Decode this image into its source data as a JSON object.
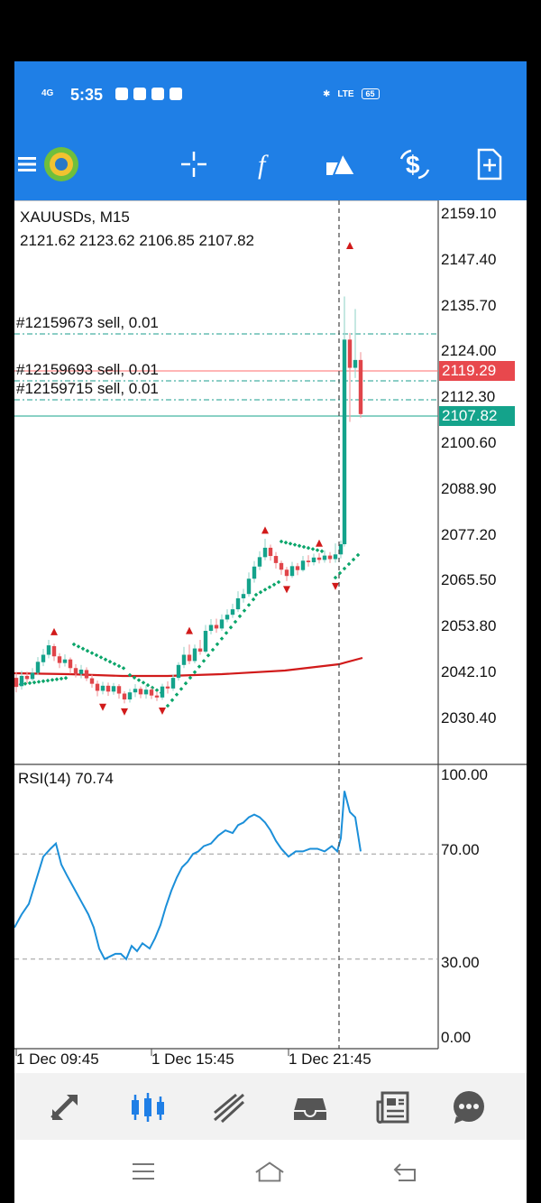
{
  "status_bar": {
    "network": "4G",
    "time": "5:35",
    "battery": "65",
    "volte": "LTE"
  },
  "toolbar": {
    "menu_icon": "menu-icon",
    "logo_icon": "metatrader-logo",
    "buttons": [
      "crosshair-icon",
      "function-icon",
      "objects-icon",
      "trade-dollar-icon",
      "new-order-icon"
    ]
  },
  "chart": {
    "symbol": "XAUUSDs, M15",
    "ohlc": "2121.62 2123.62 2106.85 2107.82",
    "orders": [
      "#12159673 sell, 0.01",
      "#12159693 sell, 0.01",
      "#12159715 sell, 0.01"
    ],
    "price_labels": [
      "2159.10",
      "2147.40",
      "2135.70",
      "2124.00",
      "2112.30",
      "2100.60",
      "2088.90",
      "2077.20",
      "2065.50",
      "2053.80",
      "2042.10",
      "2030.40"
    ],
    "ask_price": "2119.29",
    "bid_price": "2107.82",
    "colors": {
      "bull": "#14a38b",
      "bear": "#e0454a",
      "ma": "#d11a1a",
      "sar": "#0aa56a",
      "order_line": "#1a9c8c",
      "ask_line": "#ff6b6b",
      "rsi": "#1b8fd9"
    }
  },
  "rsi": {
    "label": "RSI(14) 70.74",
    "levels": [
      "100.00",
      "70.00",
      "30.00",
      "0.00"
    ]
  },
  "time_axis": [
    "1 Dec 09:45",
    "1 Dec 15:45",
    "1 Dec 21:45"
  ],
  "bottom_nav": [
    "quotes-icon",
    "chart-icon",
    "trade-icon",
    "history-icon",
    "news-icon",
    "chat-icon"
  ],
  "system_nav": [
    "recents-icon",
    "home-icon",
    "back-icon"
  ]
}
